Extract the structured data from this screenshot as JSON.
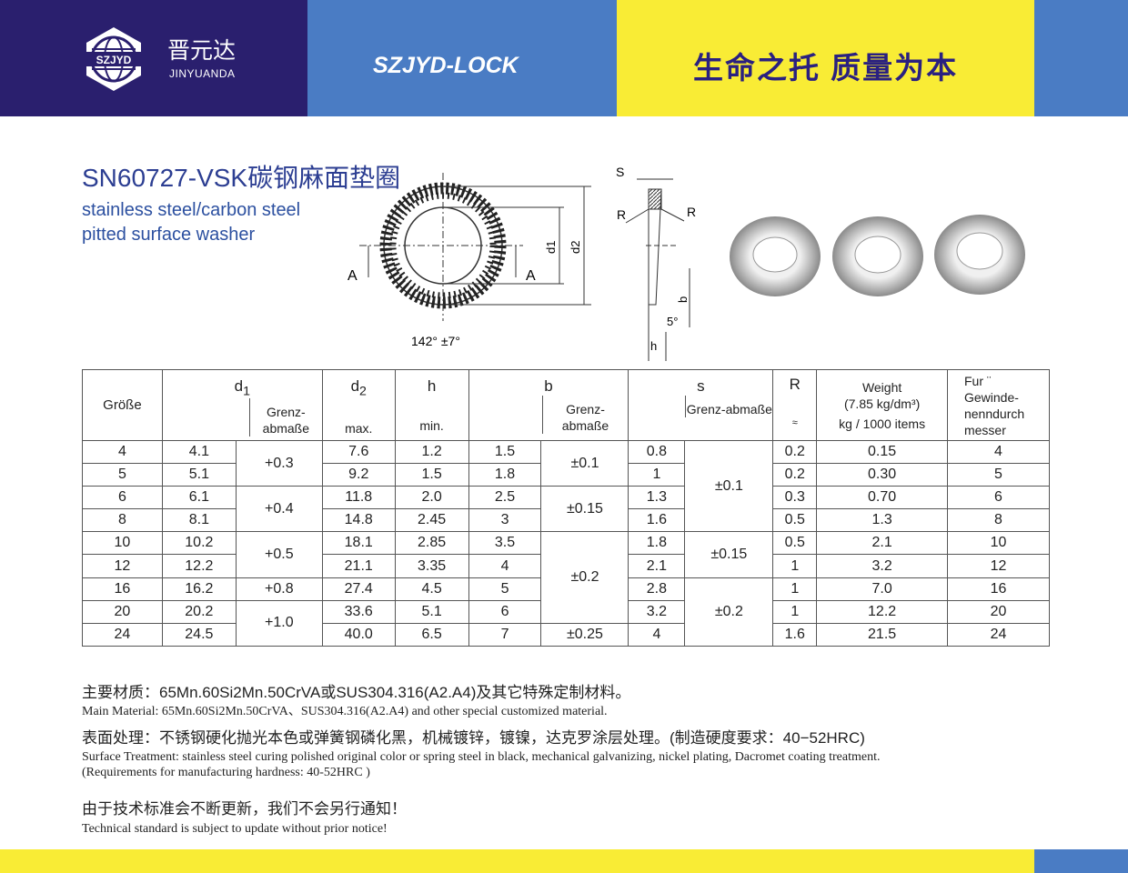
{
  "header": {
    "logo_badge": "SZJYD",
    "logo_cn": "晋元达",
    "logo_en": "JINYUANDA",
    "brand": "SZJYD-LOCK",
    "slogan": "生命之托  质量为本",
    "colors": {
      "navy": "#2a1f6e",
      "blue": "#4a7cc4",
      "yellow": "#f9ec35"
    }
  },
  "product": {
    "title": "SN60727-VSK碳钢麻面垫圈",
    "subtitle_1": "stainless steel/carbon steel",
    "subtitle_2": "pitted surface washer"
  },
  "drawing": {
    "section_a_left": "A",
    "section_a_right": "A",
    "d1": "d1",
    "d2": "d2",
    "angle": "142° ±7°",
    "s": "S",
    "r_left": "R",
    "r_right": "R",
    "b": "b",
    "deg": "5°",
    "h": "h"
  },
  "table": {
    "headers": {
      "size": "Größe",
      "d1": "d1",
      "d1_tol": "Grenz-abmaße",
      "d2": "d2",
      "d2_sub": "max.",
      "h": "h",
      "h_sub": "min.",
      "b": "b",
      "b_tol": "Grenz-abmaße",
      "s": "s",
      "s_tol": "Grenz-abmaße",
      "r": "R",
      "r_sub": "≈",
      "weight_1": "Weight",
      "weight_2": "(7.85 kg/dm³)",
      "weight_3": "kg / 1000 items",
      "thread": "Fur ¨ Gewinde-nenndurch messer"
    },
    "rows": [
      [
        "4",
        "4.1",
        "7.6",
        "1.2",
        "1.5",
        "0.8",
        "0.2",
        "0.15",
        "4"
      ],
      [
        "5",
        "5.1",
        "9.2",
        "1.5",
        "1.8",
        "1",
        "0.2",
        "0.30",
        "5"
      ],
      [
        "6",
        "6.1",
        "11.8",
        "2.0",
        "2.5",
        "1.3",
        "0.3",
        "0.70",
        "6"
      ],
      [
        "8",
        "8.1",
        "14.8",
        "2.45",
        "3",
        "1.6",
        "0.5",
        "1.3",
        "8"
      ],
      [
        "10",
        "10.2",
        "18.1",
        "2.85",
        "3.5",
        "1.8",
        "0.5",
        "2.1",
        "10"
      ],
      [
        "12",
        "12.2",
        "21.1",
        "3.35",
        "4",
        "2.1",
        "1",
        "3.2",
        "12"
      ],
      [
        "16",
        "16.2",
        "27.4",
        "4.5",
        "5",
        "2.8",
        "1",
        "7.0",
        "16"
      ],
      [
        "20",
        "20.2",
        "33.6",
        "5.1",
        "6",
        "3.2",
        "1",
        "12.2",
        "20"
      ],
      [
        "24",
        "24.5",
        "40.0",
        "6.5",
        "7",
        "4",
        "1.6",
        "21.5",
        "24"
      ]
    ],
    "d1_tol": [
      {
        "start": 0,
        "span": 2,
        "v": "+0.3"
      },
      {
        "start": 2,
        "span": 2,
        "v": "+0.4"
      },
      {
        "start": 4,
        "span": 2,
        "v": "+0.5"
      },
      {
        "start": 6,
        "span": 1,
        "v": "+0.8"
      },
      {
        "start": 7,
        "span": 2,
        "v": "+1.0"
      }
    ],
    "b_tol": [
      {
        "start": 0,
        "span": 2,
        "v": "±0.1"
      },
      {
        "start": 2,
        "span": 2,
        "v": "±0.15"
      },
      {
        "start": 4,
        "span": 4,
        "v": "±0.2"
      },
      {
        "start": 8,
        "span": 1,
        "v": "±0.25"
      }
    ],
    "s_tol": [
      {
        "start": 0,
        "span": 4,
        "v": "±0.1"
      },
      {
        "start": 4,
        "span": 2,
        "v": "±0.15"
      },
      {
        "start": 6,
        "span": 3,
        "v": "±0.2"
      }
    ]
  },
  "notes": {
    "material_cn": "主要材质：65Mn.60Si2Mn.50CrVA或SUS304.316(A2.A4)及其它特殊定制材料。",
    "material_en": "Main Material: 65Mn.60Si2Mn.50CrVA、SUS304.316(A2.A4) and other special customized material.",
    "surface_cn": "表面处理：不锈钢硬化抛光本色或弹簧钢磷化黑，机械镀锌，镀镍，达克罗涂层处理。(制造硬度要求：40−52HRC)",
    "surface_en_1": "Surface Treatment: stainless steel curing polished original color or spring steel in black, mechanical galvanizing, nickel plating, Dacromet coating treatment.",
    "surface_en_2": "(Requirements for manufacturing hardness: 40-52HRC )",
    "notice_cn": "由于技术标准会不断更新，我们不会另行通知！",
    "notice_en": "Technical standard is subject to update without prior notice!"
  }
}
